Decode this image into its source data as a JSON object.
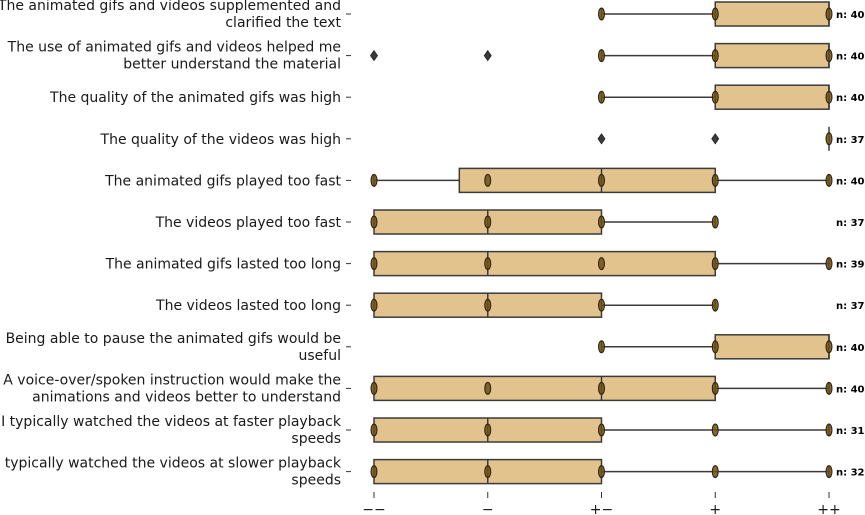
{
  "chart_data": {
    "type": "box",
    "orientation": "horizontal",
    "title": "",
    "xlabel": "",
    "ylabel": "",
    "x_ticks": [
      {
        "value": 0,
        "label": "−−"
      },
      {
        "value": 1,
        "label": "−"
      },
      {
        "value": 2,
        "label": "+−"
      },
      {
        "value": 3,
        "label": "+"
      },
      {
        "value": 4,
        "label": "++"
      }
    ],
    "xlim": [
      0,
      4
    ],
    "grid": false,
    "colors": {
      "box_fill": "#e3c38d",
      "box_edge": "#3b3b3b",
      "point": "#6b4e16",
      "text": "#000000"
    },
    "rows": [
      {
        "label": [
          "The animated gifs and videos supplemented and",
          "clarified the text"
        ],
        "n_label": "n: 40",
        "whisker_low": 2,
        "q1": 3,
        "median": 4,
        "q3": 4,
        "whisker_high": 4,
        "fliers": [],
        "points": [
          2,
          3,
          4
        ]
      },
      {
        "label": [
          "The use of animated gifs and videos helped me",
          "better understand the material"
        ],
        "n_label": "n: 40",
        "whisker_low": 2,
        "q1": 3,
        "median": 4,
        "q3": 4,
        "whisker_high": 4,
        "fliers": [
          0,
          1
        ],
        "points": [
          2,
          3,
          4
        ]
      },
      {
        "label": [
          "The quality of the animated gifs was high"
        ],
        "n_label": "n: 40",
        "whisker_low": 2,
        "q1": 3,
        "median": 4,
        "q3": 4,
        "whisker_high": 4,
        "fliers": [],
        "points": [
          2,
          3,
          4
        ]
      },
      {
        "label": [
          "The quality of the videos was high"
        ],
        "n_label": "n: 37",
        "whisker_low": 4,
        "q1": 4,
        "median": 4,
        "q3": 4,
        "whisker_high": 4,
        "fliers": [
          2,
          3
        ],
        "points": [
          4
        ]
      },
      {
        "label": [
          "The animated gifs played too fast"
        ],
        "n_label": "n: 40",
        "whisker_low": 0,
        "q1": 0.75,
        "median": 2,
        "q3": 3,
        "whisker_high": 4,
        "fliers": [],
        "points": [
          0,
          1,
          2,
          3,
          4
        ]
      },
      {
        "label": [
          "The videos played too fast"
        ],
        "n_label": "n: 37",
        "whisker_low": 0,
        "q1": 0,
        "median": 1,
        "q3": 2,
        "whisker_high": 3,
        "fliers": [],
        "points": [
          0,
          1,
          2,
          3
        ]
      },
      {
        "label": [
          "The animated gifs lasted too long"
        ],
        "n_label": "n: 39",
        "whisker_low": 0,
        "q1": 0,
        "median": 1,
        "q3": 3,
        "whisker_high": 4,
        "fliers": [],
        "points": [
          0,
          1,
          2,
          3,
          4
        ]
      },
      {
        "label": [
          "The videos lasted too long"
        ],
        "n_label": "n: 37",
        "whisker_low": 0,
        "q1": 0,
        "median": 1,
        "q3": 2,
        "whisker_high": 3,
        "fliers": [],
        "points": [
          0,
          1,
          2,
          3
        ]
      },
      {
        "label": [
          "Being able to pause the animated gifs would be",
          "useful"
        ],
        "n_label": "n: 40",
        "whisker_low": 2,
        "q1": 3,
        "median": 4,
        "q3": 4,
        "whisker_high": 4,
        "fliers": [],
        "points": [
          2,
          3,
          4
        ]
      },
      {
        "label": [
          "A voice-over/spoken instruction would make the",
          "animations and videos better to understand"
        ],
        "n_label": "n: 40",
        "whisker_low": 0,
        "q1": 0,
        "median": 2,
        "q3": 3,
        "whisker_high": 4,
        "fliers": [],
        "points": [
          0,
          1,
          2,
          3,
          4
        ]
      },
      {
        "label": [
          "I typically watched the videos at faster playback",
          "speeds"
        ],
        "n_label": "n: 31",
        "whisker_low": 0,
        "q1": 0,
        "median": 1,
        "q3": 2,
        "whisker_high": 4,
        "fliers": [],
        "points": [
          0,
          1,
          2,
          3,
          4
        ]
      },
      {
        "label": [
          "I typically watched the videos at slower playback",
          "speeds"
        ],
        "n_label": "n: 32",
        "whisker_low": 0,
        "q1": 0,
        "median": 1,
        "q3": 2,
        "whisker_high": 4,
        "fliers": [],
        "points": [
          0,
          1,
          2,
          3,
          4
        ]
      }
    ]
  }
}
